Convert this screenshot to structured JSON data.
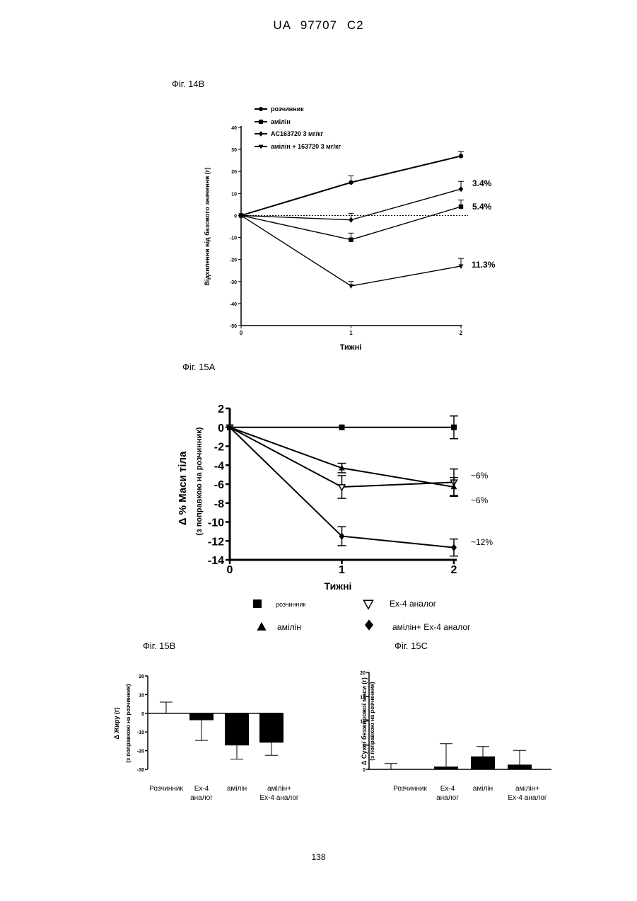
{
  "header": {
    "title": "UA   97707   C2"
  },
  "page_number": "138",
  "chart_data": [
    {
      "id": "fig14b",
      "fig_label": "Фіг. 14В",
      "type": "line",
      "xlabel": "Тижні",
      "ylabel": "Відхилення від базового значення (г)",
      "x": [
        0,
        1,
        2
      ],
      "xticks": [
        "0",
        "1",
        "2"
      ],
      "ylim": [
        -50,
        40
      ],
      "yticks": [
        "-50",
        "-40",
        "-30",
        "-20",
        "-10",
        "0",
        "10",
        "20",
        "30",
        "40"
      ],
      "legend_position": "top-left",
      "series": [
        {
          "name": "розчинник",
          "marker": "circle",
          "values": [
            0,
            15,
            27
          ],
          "err": [
            0,
            3,
            2
          ]
        },
        {
          "name": "амілін",
          "marker": "square",
          "values": [
            0,
            -11,
            4
          ],
          "err": [
            0,
            3,
            3
          ]
        },
        {
          "name": "AC163720 3 мг/кг",
          "marker": "diamond",
          "values": [
            0,
            -2,
            12
          ],
          "err": [
            0,
            3,
            3.5
          ]
        },
        {
          "name": "амілін + 163720 3 мг/кг",
          "marker": "triangle-down",
          "values": [
            0,
            -32,
            -23
          ],
          "err": [
            0,
            2,
            3.5
          ]
        }
      ],
      "annotations": [
        "3.4%",
        "5.4%",
        "11.3%"
      ]
    },
    {
      "id": "fig15a",
      "fig_label": "Фіг. 15А",
      "type": "line",
      "xlabel": "Тижні",
      "ylabel": "Δ % Маси тіла",
      "ylabel2": "(з поправкою на розчинник)",
      "x": [
        0,
        1,
        2
      ],
      "xticks": [
        "0",
        "1",
        "2"
      ],
      "ylim": [
        -14,
        2
      ],
      "yticks": [
        "2",
        "0",
        "-2",
        "-4",
        "-6",
        "-8",
        "-10",
        "-12",
        "-14"
      ],
      "series": [
        {
          "name": "розчинник",
          "marker": "square",
          "values": [
            0,
            0,
            0
          ],
          "err": [
            0,
            0,
            1.2
          ]
        },
        {
          "name": "Ex-4 аналог",
          "marker": "triangle-down-open",
          "values": [
            0,
            -6.3,
            -5.8
          ],
          "err": [
            0,
            1.2,
            1.4
          ]
        },
        {
          "name": "амілін",
          "marker": "triangle-up",
          "values": [
            0,
            -4.3,
            -6.3
          ],
          "err": [
            0,
            0.5,
            1
          ]
        },
        {
          "name": "амілін+ Ex-4 аналог",
          "marker": "diamond",
          "values": [
            0,
            -11.5,
            -12.7
          ],
          "err": [
            0,
            1,
            0.9
          ]
        }
      ],
      "annotations": [
        "~6%",
        "~6%",
        "~12%"
      ]
    },
    {
      "id": "fig15b",
      "fig_label": "Фіг. 15В",
      "type": "bar",
      "ylabel": "Δ Жиру (г)",
      "ylabel2": "(з поправкою на розчинник)",
      "categories": [
        "Розчинник",
        "Ex-4 аналог",
        "амілін",
        "амілін+ Ex-4 аналог"
      ],
      "values": [
        0,
        -3.5,
        -17,
        -15.5
      ],
      "err": [
        6,
        11,
        7.5,
        7
      ],
      "ylim": [
        -30,
        20
      ],
      "yticks": [
        "20",
        "10",
        "0",
        "-10",
        "-20",
        "-30"
      ]
    },
    {
      "id": "fig15c",
      "fig_label": "Фіг. 15С",
      "type": "bar",
      "ylabel": "Δ Сухої безжирової маси (г)",
      "ylabel2": "(з поправкою на розчинник)",
      "categories": [
        "Розчинник",
        "Ex-4 аналог",
        "амілін",
        "амілін+ Ex-4 аналог"
      ],
      "values": [
        0,
        0.5,
        2.6,
        0.9
      ],
      "err": [
        1.2,
        4.8,
        2.1,
        3
      ],
      "ylim": [
        0,
        20
      ],
      "yticks": [
        "20",
        "15",
        "10",
        "5",
        "0"
      ]
    }
  ]
}
